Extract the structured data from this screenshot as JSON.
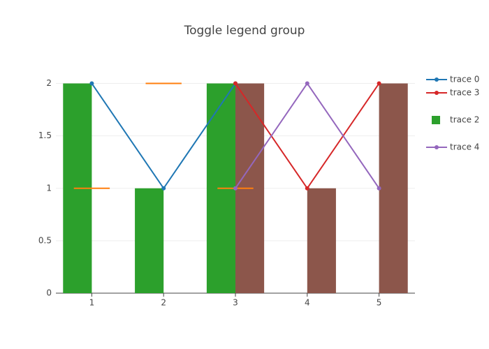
{
  "chart_data": {
    "type": "mixed",
    "title": "Toggle legend group",
    "xlim": [
      0.5,
      5.5
    ],
    "xticks": [
      1,
      2,
      3,
      4,
      5
    ],
    "ylim": [
      0,
      2.13
    ],
    "yticks": [
      0,
      0.5,
      1,
      1.5,
      2
    ],
    "grid": true,
    "series": [
      {
        "name": "trace 0",
        "type": "line",
        "color": "#1f77b4",
        "x": [
          1,
          2,
          3
        ],
        "values": [
          2,
          1,
          2
        ]
      },
      {
        "name": "trace 3",
        "type": "line",
        "color": "#d62728",
        "x": [
          3,
          4,
          5
        ],
        "values": [
          2,
          1,
          2
        ]
      },
      {
        "name": "trace 2",
        "type": "bar",
        "color": "#2ca02c",
        "x": [
          1,
          2,
          3
        ],
        "values": [
          2,
          1,
          2
        ]
      },
      {
        "name": "trace 4",
        "type": "line",
        "color": "#9467bd",
        "x": [
          3,
          4,
          5
        ],
        "values": [
          1,
          2,
          1
        ]
      },
      {
        "type": "bar",
        "color": "#8c564b",
        "x": [
          3,
          4,
          5
        ],
        "values": [
          2,
          1,
          2
        ]
      },
      {
        "type": "dash",
        "color": "#ff7f0e",
        "x": [
          1,
          2,
          3
        ],
        "values": [
          1,
          2,
          1
        ]
      }
    ]
  }
}
